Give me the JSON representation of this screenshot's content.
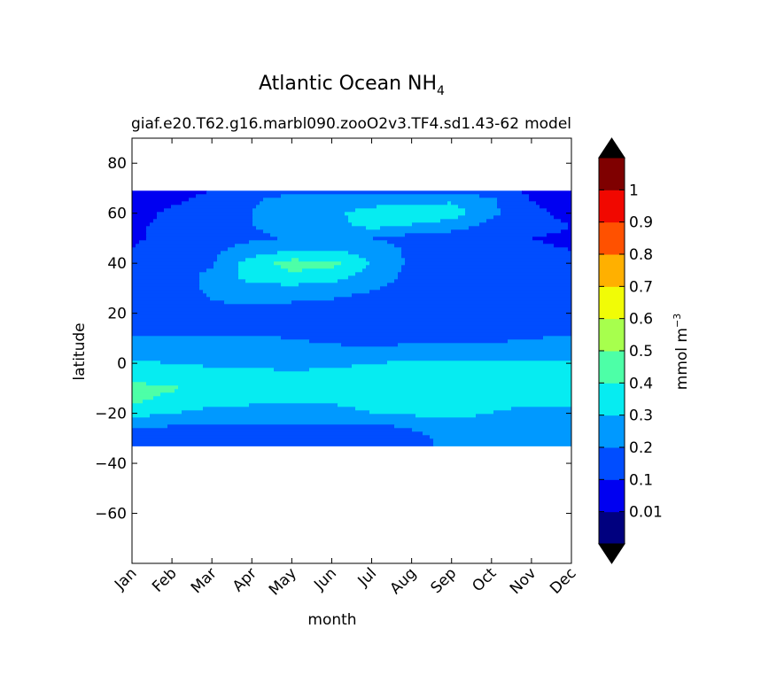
{
  "chart_data": {
    "type": "heatmap",
    "plot_style": "filled-contour",
    "title": "Atlantic Ocean NH",
    "title_subscript": "4",
    "subtitle_left": "giaf.e20.T62.g16.marbl090.zooO2v3.TF4.sd1.43-62",
    "subtitle_right": "model",
    "xlabel": "month",
    "ylabel": "latitude",
    "x_categories": [
      "Jan",
      "Feb",
      "Mar",
      "Apr",
      "May",
      "Jun",
      "Jul",
      "Aug",
      "Sep",
      "Oct",
      "Nov",
      "Dec"
    ],
    "x_range": [
      1,
      12
    ],
    "ylim": [
      -80,
      90
    ],
    "y_ticks": [
      80,
      60,
      40,
      20,
      0,
      -20,
      -40,
      -60
    ],
    "y_tick_labels": [
      "80",
      "60",
      "40",
      "20",
      "0",
      "−20",
      "−40",
      "−60"
    ],
    "data_lat_range": [
      -33,
      69
    ],
    "colorbar": {
      "label": "mmol m",
      "label_superscript": "−3",
      "levels": [
        0,
        0.01,
        0.1,
        0.2,
        0.3,
        0.4,
        0.5,
        0.6,
        0.7,
        0.8,
        0.9,
        1,
        1.1
      ],
      "tick_values": [
        0.01,
        0.1,
        0.2,
        0.3,
        0.4,
        0.5,
        0.6,
        0.7,
        0.8,
        0.9,
        1
      ],
      "tick_labels": [
        "0.01",
        "0.1",
        "0.2",
        "0.3",
        "0.4",
        "0.5",
        "0.6",
        "0.7",
        "0.8",
        "0.9",
        "1"
      ],
      "colors": [
        "#00007f",
        "#0000f1",
        "#004dff",
        "#0099ff",
        "#06ecf1",
        "#4dffa7",
        "#a7ff4d",
        "#f1fc06",
        "#ffb000",
        "#ff5100",
        "#f10800",
        "#7f0000"
      ],
      "extend": "both",
      "under_color": "#000000",
      "over_color": "#000000"
    },
    "field": {
      "months": [
        1,
        2,
        3,
        4,
        5,
        6,
        7,
        8,
        9,
        10,
        11,
        12
      ],
      "latitudes": [
        69,
        65,
        60,
        55,
        50,
        45,
        40,
        35,
        30,
        25,
        20,
        15,
        10,
        5,
        0,
        -5,
        -10,
        -15,
        -20,
        -25,
        -30,
        -33
      ],
      "values": [
        [
          0.01,
          0.05,
          0.1,
          0.14,
          0.18,
          0.18,
          0.16,
          0.16,
          0.18,
          0.14,
          0.08,
          0.04
        ],
        [
          0.03,
          0.08,
          0.14,
          0.19,
          0.24,
          0.25,
          0.26,
          0.27,
          0.29,
          0.22,
          0.1,
          0.06
        ],
        [
          0.06,
          0.12,
          0.16,
          0.2,
          0.26,
          0.28,
          0.34,
          0.38,
          0.35,
          0.22,
          0.12,
          0.08
        ],
        [
          0.08,
          0.13,
          0.17,
          0.2,
          0.24,
          0.27,
          0.33,
          0.29,
          0.25,
          0.17,
          0.12,
          0.1
        ],
        [
          0.09,
          0.12,
          0.16,
          0.18,
          0.21,
          0.22,
          0.2,
          0.16,
          0.14,
          0.12,
          0.1,
          0.09
        ],
        [
          0.1,
          0.14,
          0.18,
          0.25,
          0.3,
          0.3,
          0.26,
          0.18,
          0.14,
          0.12,
          0.11,
          0.1
        ],
        [
          0.12,
          0.15,
          0.19,
          0.35,
          0.44,
          0.43,
          0.29,
          0.18,
          0.14,
          0.12,
          0.12,
          0.12
        ],
        [
          0.14,
          0.16,
          0.22,
          0.35,
          0.38,
          0.35,
          0.26,
          0.17,
          0.14,
          0.13,
          0.13,
          0.14
        ],
        [
          0.15,
          0.16,
          0.22,
          0.27,
          0.27,
          0.26,
          0.21,
          0.16,
          0.14,
          0.13,
          0.14,
          0.15
        ],
        [
          0.14,
          0.15,
          0.2,
          0.23,
          0.21,
          0.19,
          0.16,
          0.14,
          0.13,
          0.13,
          0.14,
          0.14
        ],
        [
          0.13,
          0.13,
          0.14,
          0.14,
          0.13,
          0.13,
          0.12,
          0.12,
          0.12,
          0.12,
          0.13,
          0.13
        ],
        [
          0.14,
          0.14,
          0.13,
          0.13,
          0.13,
          0.12,
          0.12,
          0.12,
          0.12,
          0.13,
          0.14,
          0.14
        ],
        [
          0.21,
          0.22,
          0.22,
          0.21,
          0.2,
          0.18,
          0.16,
          0.16,
          0.17,
          0.18,
          0.2,
          0.21
        ],
        [
          0.24,
          0.25,
          0.25,
          0.24,
          0.23,
          0.22,
          0.23,
          0.24,
          0.25,
          0.24,
          0.24,
          0.24
        ],
        [
          0.31,
          0.3,
          0.28,
          0.27,
          0.26,
          0.27,
          0.3,
          0.31,
          0.32,
          0.32,
          0.32,
          0.32
        ],
        [
          0.36,
          0.36,
          0.35,
          0.34,
          0.33,
          0.34,
          0.36,
          0.37,
          0.37,
          0.37,
          0.36,
          0.37
        ],
        [
          0.43,
          0.41,
          0.37,
          0.35,
          0.34,
          0.34,
          0.35,
          0.36,
          0.36,
          0.36,
          0.37,
          0.4
        ],
        [
          0.42,
          0.37,
          0.33,
          0.32,
          0.31,
          0.31,
          0.33,
          0.34,
          0.34,
          0.34,
          0.34,
          0.35
        ],
        [
          0.34,
          0.3,
          0.27,
          0.26,
          0.26,
          0.27,
          0.3,
          0.32,
          0.34,
          0.3,
          0.25,
          0.24
        ],
        [
          0.21,
          0.2,
          0.2,
          0.19,
          0.19,
          0.19,
          0.19,
          0.21,
          0.23,
          0.24,
          0.22,
          0.21
        ],
        [
          0.18,
          0.17,
          0.17,
          0.17,
          0.17,
          0.17,
          0.17,
          0.18,
          0.22,
          0.24,
          0.25,
          0.22
        ],
        [
          0.17,
          0.17,
          0.17,
          0.17,
          0.17,
          0.17,
          0.17,
          0.17,
          0.22,
          0.24,
          0.31,
          0.22
        ]
      ]
    }
  }
}
